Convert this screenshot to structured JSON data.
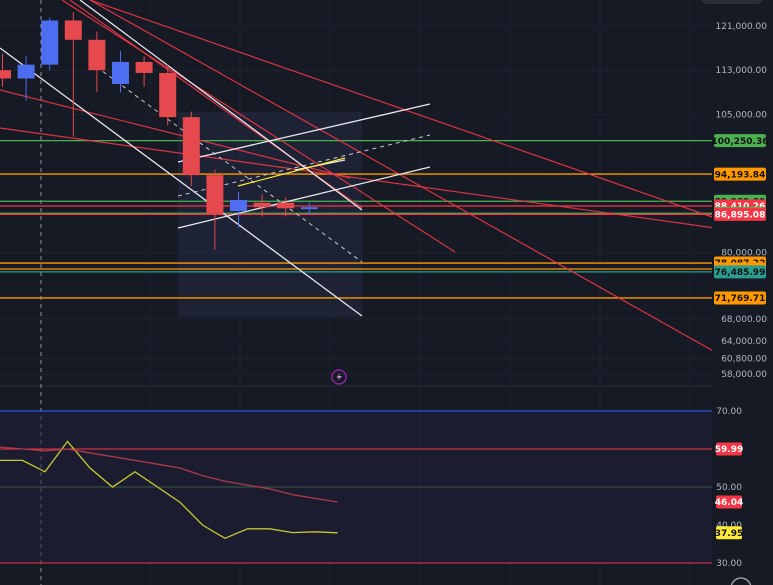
{
  "chart_data": [
    {
      "type": "candlestick",
      "ylim": [
        56000,
        124000
      ],
      "price_axis_ticks": [
        "121,000.00",
        "113,000.00",
        "105,000.00",
        "80,000.00",
        "68,000.00",
        "64,000.00",
        "60,800.00",
        "58,000.00"
      ],
      "candles": [
        {
          "open": 113000,
          "high": 116000,
          "low": 110000,
          "close": 111500
        },
        {
          "open": 111500,
          "high": 115500,
          "low": 107500,
          "close": 114000
        },
        {
          "open": 114000,
          "high": 122500,
          "low": 113000,
          "close": 122000
        },
        {
          "open": 122000,
          "high": 123500,
          "low": 101000,
          "close": 118500
        },
        {
          "open": 118500,
          "high": 120000,
          "low": 109000,
          "close": 113000
        },
        {
          "open": 110500,
          "high": 116500,
          "low": 109000,
          "close": 114500
        },
        {
          "open": 114500,
          "high": 115500,
          "low": 110000,
          "close": 112500
        },
        {
          "open": 112500,
          "high": 114000,
          "low": 103000,
          "close": 104500
        },
        {
          "open": 104500,
          "high": 105500,
          "low": 92000,
          "close": 94000
        },
        {
          "open": 94000,
          "high": 95000,
          "low": 80500,
          "close": 87000
        },
        {
          "open": 87500,
          "high": 91000,
          "low": 84500,
          "close": 89500
        },
        {
          "open": 89000,
          "high": 90500,
          "low": 86500,
          "close": 88200
        },
        {
          "open": 89000,
          "high": 90000,
          "low": 86500,
          "close": 88000
        },
        {
          "open": 88000,
          "high": 89000,
          "low": 86800,
          "close": 88200
        }
      ],
      "horizontal_levels": [
        {
          "label": "100,250.36",
          "value": 100250.36,
          "color": "#4caf50"
        },
        {
          "label": "94,193.84",
          "value": 94193.84,
          "color": "#ff9800"
        },
        {
          "label": "89,269.39",
          "value": 89269.39,
          "color": "#4caf50"
        },
        {
          "label": "88,410.26",
          "value": 88410.26,
          "color": "#f23645"
        },
        {
          "label": "87,095.06",
          "value": 87095.06,
          "color": "#4caf50"
        },
        {
          "label": "86,895.08",
          "value": 86895.08,
          "color": "#f23645"
        },
        {
          "label": "78,087.22",
          "value": 78087.22,
          "color": "#ff9800"
        },
        {
          "label": "77,005.30",
          "value": 77005.3,
          "color": "#ff9800"
        },
        {
          "label": "76,485.99",
          "value": 76485.99,
          "color": "#2a9d8f"
        },
        {
          "label": "71,769.71",
          "value": 71769.71,
          "color": "#ff9800"
        }
      ]
    },
    {
      "type": "line",
      "ylim": [
        28,
        74
      ],
      "axis_ticks": [
        "70.00",
        "50.00",
        "40.00",
        "30.00"
      ],
      "reference_levels": [
        {
          "label": "70.00",
          "value": 70,
          "color": "#2962ff"
        },
        {
          "label": "59.99",
          "value": 59.99,
          "color": "#f23645"
        },
        {
          "label": "30.00",
          "value": 30,
          "color": "#f23645"
        }
      ],
      "series": [
        {
          "label": "37.95",
          "color": "#c8c830",
          "values": [
            57,
            57,
            54,
            62,
            55,
            50,
            54,
            50,
            46,
            40,
            36.5,
            39,
            39,
            38,
            38.2,
            37.95
          ]
        },
        {
          "label": "46.04",
          "color": "#b03a4a",
          "values": [
            60.5,
            60,
            59.5,
            60,
            59,
            58,
            57,
            56,
            55,
            53,
            51.5,
            50.5,
            49.5,
            48,
            47,
            46.04
          ]
        }
      ]
    }
  ]
}
